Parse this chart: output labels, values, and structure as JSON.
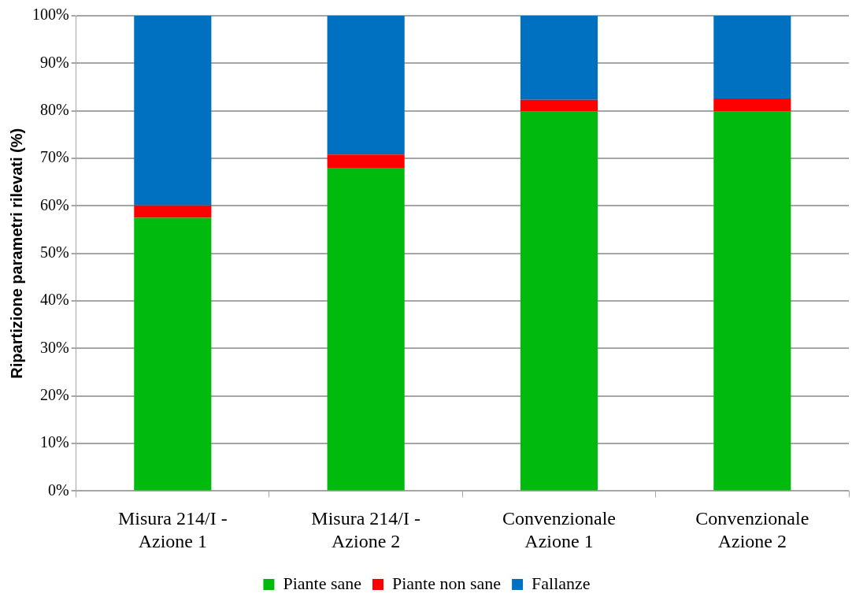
{
  "chart_data": {
    "type": "bar",
    "stacked": true,
    "ylabel": "Ripartizione parametri rilevati (%)",
    "categories": [
      "Misura 214/I -\nAzione 1",
      "Misura 214/I -\nAzione 2",
      "Convenzionale\nAzione 1",
      "Convenzionale\nAzione 2"
    ],
    "series": [
      {
        "name": "Piante sane",
        "color": "#00bb0e",
        "values": [
          57.5,
          68.0,
          79.9,
          79.9
        ]
      },
      {
        "name": "Piante non sane",
        "color": "#ff0000",
        "values": [
          2.6,
          2.8,
          2.4,
          2.7
        ]
      },
      {
        "name": "Fallanze",
        "color": "#0070c0",
        "values": [
          39.9,
          29.2,
          17.7,
          17.4
        ]
      }
    ],
    "ylim": [
      0,
      100
    ],
    "yticks": [
      {
        "value": 0,
        "label": "0%"
      },
      {
        "value": 10,
        "label": "10%"
      },
      {
        "value": 20,
        "label": "20%"
      },
      {
        "value": 30,
        "label": "30%"
      },
      {
        "value": 40,
        "label": "40%"
      },
      {
        "value": 50,
        "label": "50%"
      },
      {
        "value": 60,
        "label": "60%"
      },
      {
        "value": 70,
        "label": "70%"
      },
      {
        "value": 80,
        "label": "80%"
      },
      {
        "value": 90,
        "label": "90%"
      },
      {
        "value": 100,
        "label": "100%"
      }
    ],
    "grid": "y",
    "legend": "bottom"
  }
}
